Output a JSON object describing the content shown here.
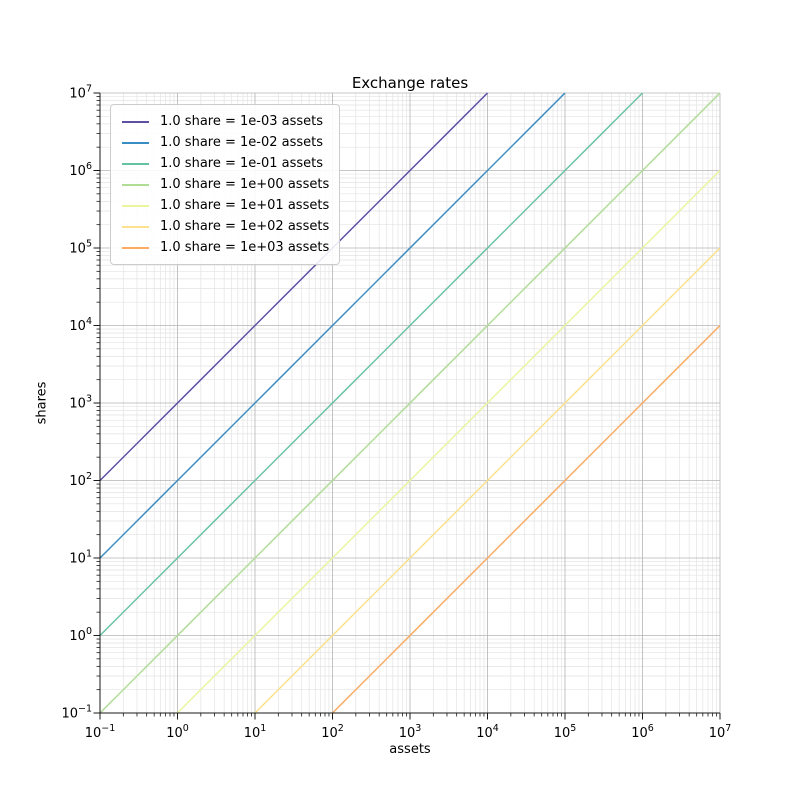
{
  "figure": {
    "title": "Exchange rates",
    "xlabel": "assets",
    "ylabel": "shares",
    "background": "#ffffff"
  },
  "chart_data": {
    "type": "line",
    "title": "Exchange rates",
    "xlabel": "assets",
    "ylabel": "shares",
    "x_scale": "log",
    "y_scale": "log",
    "xlim": [
      0.1,
      10000000
    ],
    "ylim": [
      0.1,
      10000000
    ],
    "x_tick_exponents": [
      -1,
      0,
      1,
      2,
      3,
      4,
      5,
      6,
      7
    ],
    "y_tick_exponents": [
      -1,
      0,
      1,
      2,
      3,
      4,
      5,
      6,
      7
    ],
    "x_tick_labels": [
      "10^-1",
      "10^0",
      "10^1",
      "10^2",
      "10^3",
      "10^4",
      "10^5",
      "10^6",
      "10^7"
    ],
    "y_tick_labels": [
      "10^-1",
      "10^0",
      "10^1",
      "10^2",
      "10^3",
      "10^4",
      "10^5",
      "10^6",
      "10^7"
    ],
    "grid": {
      "which": "both",
      "major_color": "#b4b4b4",
      "minor_color": "#e3e3e3"
    },
    "legend_position": "upper left",
    "axis_color": "#1a1a1a",
    "series": [
      {
        "label": "1.0 share = 1e-03 assets",
        "color": "#5e4fa2",
        "assets_per_share": 0.001,
        "shares_per_asset": 1000,
        "points": [
          [
            0.1,
            100
          ],
          [
            10000,
            10000000
          ]
        ]
      },
      {
        "label": "1.0 share = 1e-02 assets",
        "color": "#3a8dc3",
        "assets_per_share": 0.01,
        "shares_per_asset": 100,
        "points": [
          [
            0.1,
            10
          ],
          [
            100000,
            10000000
          ]
        ]
      },
      {
        "label": "1.0 share = 1e-01 assets",
        "color": "#66c2a5",
        "assets_per_share": 0.1,
        "shares_per_asset": 10,
        "points": [
          [
            0.1,
            1
          ],
          [
            1000000,
            10000000
          ]
        ]
      },
      {
        "label": "1.0 share = 1e+00 assets",
        "color": "#aedd93",
        "assets_per_share": 1,
        "shares_per_asset": 1,
        "points": [
          [
            0.1,
            0.1
          ],
          [
            10000000,
            10000000
          ]
        ]
      },
      {
        "label": "1.0 share = 1e+01 assets",
        "color": "#ebf59c",
        "assets_per_share": 10,
        "shares_per_asset": 0.1,
        "points": [
          [
            1,
            0.1
          ],
          [
            10000000,
            1000000
          ]
        ]
      },
      {
        "label": "1.0 share = 1e+02 assets",
        "color": "#fee18d",
        "assets_per_share": 100,
        "shares_per_asset": 0.01,
        "points": [
          [
            10,
            0.1
          ],
          [
            10000000,
            100000
          ]
        ]
      },
      {
        "label": "1.0 share = 1e+03 assets",
        "color": "#fcab60",
        "assets_per_share": 1000,
        "shares_per_asset": 0.001,
        "points": [
          [
            100,
            0.1
          ],
          [
            10000000,
            10000
          ]
        ]
      }
    ]
  }
}
